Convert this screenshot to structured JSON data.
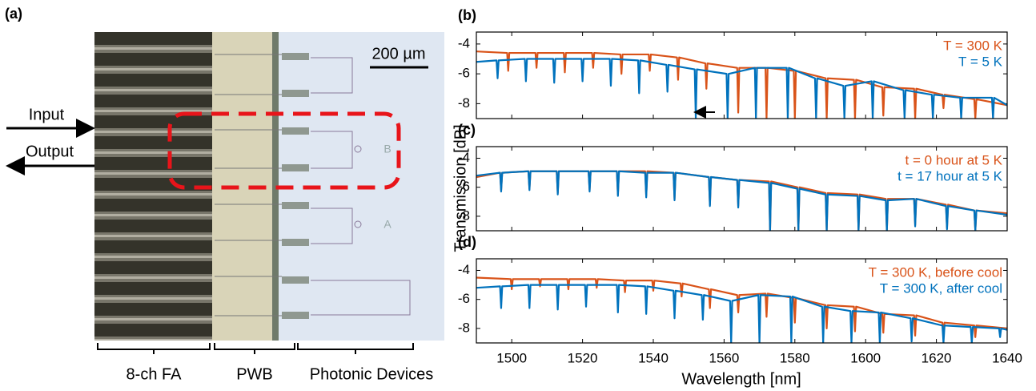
{
  "panel_a": {
    "label": "(a)",
    "scale_bar": "200 µm",
    "input": "Input",
    "output": "Output",
    "device_labels": [
      "B",
      "A"
    ],
    "regions": [
      "8-ch FA",
      "PWB",
      "Photonic Devices"
    ]
  },
  "y_label": "Transmission [dB]",
  "x_label": "Wavelength [nm]",
  "chart_data": [
    {
      "type": "line",
      "label": "(b)",
      "xlim": [
        1490,
        1640
      ],
      "ylim": [
        -9,
        -3.2
      ],
      "xticks": [
        1500,
        1520,
        1540,
        1560,
        1580,
        1600,
        1620,
        1640
      ],
      "yticks": [
        -4,
        -6,
        -8
      ],
      "legend": "upper right",
      "series": [
        {
          "name": "T = 300 K",
          "color": "#d95319",
          "x": [
            1490,
            1498.7,
            1499,
            1499.3,
            1506.7,
            1507,
            1507.3,
            1514.7,
            1515,
            1515.3,
            1522.7,
            1523,
            1523.3,
            1530.7,
            1531,
            1531.3,
            1538.7,
            1539,
            1539.3,
            1546.7,
            1547,
            1547.3,
            1554.7,
            1555,
            1555.3,
            1563.7,
            1564,
            1564.3,
            1571.7,
            1572,
            1572.3,
            1579.7,
            1580,
            1580.3,
            1588.7,
            1589,
            1589.3,
            1596.7,
            1597,
            1597.3,
            1604.7,
            1605,
            1605.3,
            1613.7,
            1614,
            1614.3,
            1621.7,
            1622,
            1622.3,
            1630.7,
            1631,
            1631.3,
            1640
          ],
          "values": [
            -4.5,
            -4.6,
            -5.8,
            -4.6,
            -4.6,
            -5.6,
            -4.6,
            -4.6,
            -5.9,
            -4.6,
            -4.6,
            -5.6,
            -4.6,
            -4.7,
            -6.0,
            -4.7,
            -4.7,
            -5.8,
            -4.7,
            -4.9,
            -6.4,
            -4.9,
            -5.3,
            -7.0,
            -5.3,
            -5.6,
            -8.6,
            -5.6,
            -5.6,
            -9.0,
            -5.6,
            -5.8,
            -9.0,
            -5.8,
            -6.3,
            -9.0,
            -6.3,
            -6.4,
            -9.0,
            -6.4,
            -6.9,
            -8.8,
            -6.9,
            -7.0,
            -9.0,
            -7.0,
            -7.4,
            -8.3,
            -7.4,
            -7.7,
            -9.0,
            -7.7,
            -8.1
          ]
        },
        {
          "name": "T = 5 K",
          "color": "#0072bd",
          "x": [
            1490,
            1495.7,
            1496,
            1496.3,
            1503.7,
            1504,
            1504.3,
            1511.7,
            1512,
            1512.3,
            1519.7,
            1520,
            1520.3,
            1527.7,
            1528,
            1528.3,
            1535.7,
            1536,
            1536.3,
            1543.7,
            1544,
            1544.3,
            1551.7,
            1552,
            1552.3,
            1560.7,
            1561,
            1561.3,
            1568.7,
            1569,
            1569.3,
            1577.7,
            1578,
            1578.3,
            1585.7,
            1586,
            1586.3,
            1593.7,
            1594,
            1594.3,
            1601.7,
            1602,
            1602.3,
            1610.7,
            1611,
            1611.3,
            1618.7,
            1619,
            1619.3,
            1626.7,
            1627,
            1627.3,
            1635.7,
            1636,
            1636.3,
            1640
          ],
          "values": [
            -5.2,
            -5.1,
            -6.3,
            -5.1,
            -5.0,
            -6.5,
            -5.0,
            -5.0,
            -6.6,
            -5.0,
            -5.0,
            -6.5,
            -5.0,
            -5.0,
            -6.8,
            -5.0,
            -5.1,
            -7.3,
            -5.1,
            -5.4,
            -7.2,
            -5.4,
            -5.7,
            -9.0,
            -5.7,
            -6.0,
            -9.0,
            -6.0,
            -5.6,
            -9.0,
            -5.6,
            -5.6,
            -9.0,
            -5.6,
            -6.3,
            -9.0,
            -6.3,
            -6.8,
            -9.0,
            -6.8,
            -6.5,
            -9.0,
            -6.5,
            -7.1,
            -9.0,
            -7.1,
            -7.4,
            -9.0,
            -7.4,
            -7.6,
            -9.0,
            -7.6,
            -7.6,
            -9.0,
            -7.6,
            -8.1
          ]
        }
      ]
    },
    {
      "type": "line",
      "label": "(c)",
      "xlim": [
        1490,
        1640
      ],
      "ylim": [
        -9,
        -3.2
      ],
      "xticks": [
        1500,
        1520,
        1540,
        1560,
        1580,
        1600,
        1620,
        1640
      ],
      "yticks": [
        -4,
        -6,
        -8
      ],
      "legend": "upper right",
      "series": [
        {
          "name": "t = 0 hour at 5 K",
          "color": "#d95319",
          "x": [
            1490,
            1496.7,
            1497,
            1497.3,
            1504.7,
            1505,
            1505.3,
            1512.7,
            1513,
            1513.3,
            1521.7,
            1522,
            1522.3,
            1529.7,
            1530,
            1530.3,
            1537.7,
            1538,
            1538.3,
            1545.7,
            1546,
            1546.3,
            1555.7,
            1556,
            1556.3,
            1563.7,
            1564,
            1564.3,
            1572.7,
            1573,
            1573.3,
            1580.7,
            1581,
            1581.3,
            1588.7,
            1589,
            1589.3,
            1597.7,
            1598,
            1598.3,
            1605.7,
            1606,
            1606.3,
            1613.7,
            1614,
            1614.3,
            1622.7,
            1623,
            1623.3,
            1630.7,
            1631,
            1631.3,
            1640
          ],
          "values": [
            -5.3,
            -5.0,
            -6.2,
            -5.0,
            -4.9,
            -6.1,
            -4.9,
            -4.9,
            -6.4,
            -4.9,
            -4.9,
            -6.2,
            -4.9,
            -4.9,
            -6.5,
            -4.9,
            -4.9,
            -6.6,
            -4.9,
            -5.0,
            -6.8,
            -5.0,
            -5.3,
            -7.2,
            -5.3,
            -5.5,
            -7.3,
            -5.5,
            -5.6,
            -9.0,
            -5.6,
            -6.0,
            -9.0,
            -6.0,
            -6.4,
            -9.0,
            -6.4,
            -6.5,
            -9.0,
            -6.5,
            -6.8,
            -9.0,
            -6.8,
            -6.8,
            -8.6,
            -6.8,
            -7.2,
            -8.8,
            -7.2,
            -7.6,
            -9.0,
            -7.6,
            -7.8
          ]
        },
        {
          "name": "t = 17 hour at 5 K",
          "color": "#0072bd",
          "x": [
            1490,
            1496.7,
            1497,
            1497.3,
            1504.7,
            1505,
            1505.3,
            1512.7,
            1513,
            1513.3,
            1521.7,
            1522,
            1522.3,
            1529.7,
            1530,
            1530.3,
            1537.7,
            1538,
            1538.3,
            1545.7,
            1546,
            1546.3,
            1555.7,
            1556,
            1556.3,
            1563.7,
            1564,
            1564.3,
            1572.7,
            1573,
            1573.3,
            1580.7,
            1581,
            1581.3,
            1588.7,
            1589,
            1589.3,
            1597.7,
            1598,
            1598.3,
            1605.7,
            1606,
            1606.3,
            1613.7,
            1614,
            1614.3,
            1622.7,
            1623,
            1623.3,
            1630.7,
            1631,
            1631.3,
            1640
          ],
          "values": [
            -5.2,
            -5.0,
            -6.3,
            -5.0,
            -4.9,
            -6.2,
            -4.9,
            -4.9,
            -6.5,
            -4.9,
            -4.9,
            -6.3,
            -4.9,
            -4.9,
            -6.6,
            -4.9,
            -5.0,
            -6.7,
            -5.0,
            -5.0,
            -6.9,
            -5.0,
            -5.3,
            -7.3,
            -5.3,
            -5.5,
            -7.4,
            -5.5,
            -5.7,
            -9.0,
            -5.7,
            -6.1,
            -9.0,
            -6.1,
            -6.5,
            -9.0,
            -6.5,
            -6.6,
            -9.0,
            -6.6,
            -6.9,
            -9.0,
            -6.9,
            -6.8,
            -8.7,
            -6.8,
            -7.3,
            -8.9,
            -7.3,
            -7.6,
            -9.0,
            -7.6,
            -7.9
          ]
        }
      ]
    },
    {
      "type": "line",
      "label": "(d)",
      "xlim": [
        1490,
        1640
      ],
      "ylim": [
        -9,
        -3.2
      ],
      "xticks": [
        1500,
        1520,
        1540,
        1560,
        1580,
        1600,
        1620,
        1640
      ],
      "yticks": [
        -4,
        -6,
        -8
      ],
      "legend": "upper right",
      "series": [
        {
          "name": "T = 300 K, before cool",
          "color": "#d95319",
          "x": [
            1490,
            1499.7,
            1500,
            1500.3,
            1507.7,
            1508,
            1508.3,
            1515.7,
            1516,
            1516.3,
            1523.7,
            1524,
            1524.3,
            1531.7,
            1532,
            1532.3,
            1539.7,
            1540,
            1540.3,
            1547.7,
            1548,
            1548.3,
            1555.7,
            1556,
            1556.3,
            1563.7,
            1564,
            1564.3,
            1571.7,
            1572,
            1572.3,
            1579.7,
            1580,
            1580.3,
            1588.7,
            1589,
            1589.3,
            1596.7,
            1597,
            1597.3,
            1604.7,
            1605,
            1605.3,
            1613.7,
            1614,
            1614.3,
            1621.7,
            1622,
            1622.3,
            1630.7,
            1631,
            1631.3,
            1640
          ],
          "values": [
            -4.5,
            -4.6,
            -5.3,
            -4.6,
            -4.6,
            -5.1,
            -4.6,
            -4.6,
            -5.3,
            -4.6,
            -4.6,
            -5.2,
            -4.6,
            -4.7,
            -5.5,
            -4.7,
            -4.7,
            -5.4,
            -4.7,
            -4.9,
            -5.8,
            -4.9,
            -5.3,
            -6.6,
            -5.3,
            -5.7,
            -6.9,
            -5.7,
            -5.6,
            -7.2,
            -5.6,
            -5.9,
            -7.6,
            -5.9,
            -6.4,
            -8.0,
            -6.4,
            -6.5,
            -8.2,
            -6.5,
            -7.0,
            -8.3,
            -7.0,
            -7.1,
            -8.5,
            -7.1,
            -7.6,
            -8.4,
            -7.6,
            -7.8,
            -8.6,
            -7.8,
            -8.0
          ]
        },
        {
          "name": "T = 300 K, after cool",
          "color": "#0072bd",
          "x": [
            1490,
            1496.7,
            1497,
            1497.3,
            1504.7,
            1505,
            1505.3,
            1512.7,
            1513,
            1513.3,
            1520.7,
            1521,
            1521.3,
            1529.7,
            1530,
            1530.3,
            1537.7,
            1538,
            1538.3,
            1545.7,
            1546,
            1546.3,
            1553.7,
            1554,
            1554.3,
            1561.7,
            1562,
            1562.3,
            1569.7,
            1570,
            1570.3,
            1578.7,
            1579,
            1579.3,
            1587.7,
            1588,
            1588.3,
            1595.7,
            1596,
            1596.3,
            1603.7,
            1604,
            1604.3,
            1612.7,
            1613,
            1613.3,
            1621.7,
            1622,
            1622.3,
            1629.7,
            1630,
            1630.3,
            1637.7,
            1638,
            1638.3,
            1640
          ],
          "values": [
            -5.2,
            -5.1,
            -6.6,
            -5.1,
            -5.0,
            -6.6,
            -5.0,
            -5.0,
            -6.7,
            -5.0,
            -5.0,
            -6.5,
            -5.0,
            -5.0,
            -6.9,
            -5.0,
            -5.1,
            -7.0,
            -5.1,
            -5.4,
            -7.3,
            -5.4,
            -5.7,
            -7.4,
            -5.7,
            -6.1,
            -9.0,
            -6.1,
            -5.7,
            -9.0,
            -5.7,
            -5.8,
            -9.0,
            -5.8,
            -6.5,
            -9.0,
            -6.5,
            -6.8,
            -9.0,
            -6.8,
            -6.9,
            -9.0,
            -6.9,
            -7.3,
            -8.9,
            -7.3,
            -7.8,
            -9.0,
            -7.8,
            -7.9,
            -9.0,
            -7.9,
            -8.0,
            -8.6,
            -8.0,
            -8.1
          ]
        }
      ]
    }
  ]
}
